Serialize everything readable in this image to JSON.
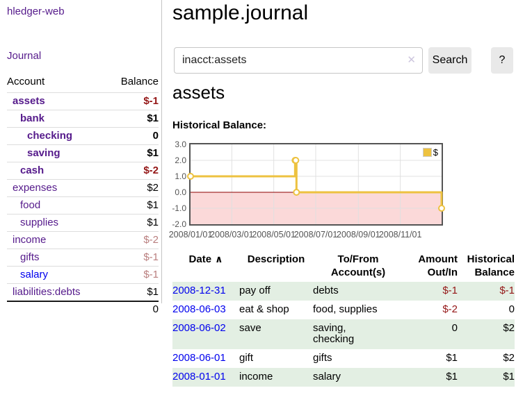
{
  "app_title": "hledger-web",
  "nav": {
    "journal": "Journal"
  },
  "sidebar": {
    "account_header": "Account",
    "balance_header": "Balance",
    "rows": [
      {
        "account": "assets",
        "balance": "$-1",
        "level": 1,
        "bold": true
      },
      {
        "account": "bank",
        "balance": "$1",
        "level": 2,
        "bold": true
      },
      {
        "account": "checking",
        "balance": "0",
        "level": 3,
        "bold": true
      },
      {
        "account": "saving",
        "balance": "$1",
        "level": 3,
        "bold": true
      },
      {
        "account": "cash",
        "balance": "$-2",
        "level": 2,
        "bold": true
      },
      {
        "account": "expenses",
        "balance": "$2",
        "level": 1,
        "bold": false
      },
      {
        "account": "food",
        "balance": "$1",
        "level": 2,
        "bold": false
      },
      {
        "account": "supplies",
        "balance": "$1",
        "level": 2,
        "bold": false
      },
      {
        "account": "income",
        "balance": "$-2",
        "level": 1,
        "bold": false
      },
      {
        "account": "gifts",
        "balance": "$-1",
        "level": 2,
        "bold": false
      },
      {
        "account": "salary",
        "balance": "$-1",
        "level": 2,
        "bold": false,
        "unvisited": true
      },
      {
        "account": "liabilities:debts",
        "balance": "$1",
        "level": 1,
        "bold": false
      }
    ],
    "total": "0"
  },
  "main": {
    "title": "sample.journal",
    "search": {
      "value": "inacct:assets",
      "clear_icon": "✕",
      "search_button": "Search",
      "help_button": "?"
    },
    "account_title": "assets",
    "chart_label": "Historical Balance:"
  },
  "chart_data": {
    "type": "line",
    "step": true,
    "title": "Historical Balance",
    "series": [
      {
        "name": "$",
        "points": [
          {
            "date": "2008-01-01",
            "value": 1
          },
          {
            "date": "2008-06-01",
            "value": 2
          },
          {
            "date": "2008-06-02",
            "value": 2
          },
          {
            "date": "2008-06-03",
            "value": 0
          },
          {
            "date": "2008-12-31",
            "value": -1
          }
        ]
      }
    ],
    "x_range": [
      "2008-01-01",
      "2008-12-31"
    ],
    "x_ticks": [
      {
        "date": "2008-01-01",
        "label": "2008/01/01"
      },
      {
        "date": "2008-03-01",
        "label": "2008/03/01"
      },
      {
        "date": "2008-05-01",
        "label": "2008/05/01"
      },
      {
        "date": "2008-07-01",
        "label": "2008/07/01"
      },
      {
        "date": "2008-09-01",
        "label": "2008/09/01"
      },
      {
        "date": "2008-11-01",
        "label": "2008/11/01"
      }
    ],
    "ylim": [
      -2,
      3
    ],
    "y_ticks": [
      {
        "value": 3,
        "label": "3.0"
      },
      {
        "value": 2,
        "label": "2.0"
      },
      {
        "value": 1,
        "label": "1.0"
      },
      {
        "value": 0,
        "label": "0.0"
      },
      {
        "value": -1,
        "label": "-1.0"
      },
      {
        "value": -2,
        "label": "-2.0"
      }
    ],
    "legend": {
      "label": "$",
      "position": "top-right"
    },
    "grid": true,
    "negative_region_shaded": true
  },
  "register": {
    "sort_icon": "∧",
    "columns": [
      {
        "line1": "Date",
        "line2": "",
        "align": "left"
      },
      {
        "line1": "Description",
        "line2": "",
        "align": "left"
      },
      {
        "line1": "To/From",
        "line2": "Account(s)",
        "align": "left"
      },
      {
        "line1": "Amount",
        "line2": "Out/In",
        "align": "right"
      },
      {
        "line1": "Historical",
        "line2": "Balance",
        "align": "right"
      }
    ],
    "rows": [
      {
        "date": "2008-12-31",
        "description": "pay off",
        "accounts": "debts",
        "amount": "$-1",
        "balance": "$-1"
      },
      {
        "date": "2008-06-03",
        "description": "eat & shop",
        "accounts": "food, supplies",
        "amount": "$-2",
        "balance": "0"
      },
      {
        "date": "2008-06-02",
        "description": "save",
        "accounts": "saving, checking",
        "amount": "0",
        "balance": "$2"
      },
      {
        "date": "2008-06-01",
        "description": "gift",
        "accounts": "gifts",
        "amount": "$1",
        "balance": "$2"
      },
      {
        "date": "2008-01-01",
        "description": "income",
        "accounts": "salary",
        "amount": "$1",
        "balance": "$1"
      }
    ]
  },
  "colors": {
    "accent_purple": "#551a8b",
    "link_blue": "#0000ee",
    "negative_strong": "#941616",
    "negative_soft": "#b97e7e",
    "row_green": "#e3efe3",
    "chart_line": "#edc240",
    "chart_negative_fill": "#fbd9d9",
    "chart_zero_line": "#8b0000",
    "chart_grid": "#e0e0e0",
    "chart_axis_text": "#545454"
  }
}
